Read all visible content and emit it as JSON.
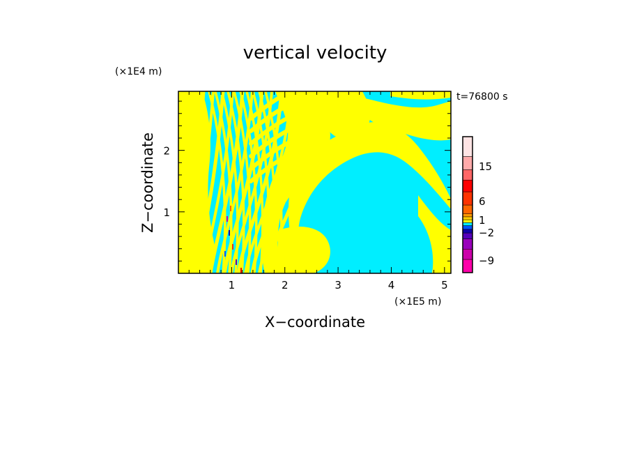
{
  "chart_data": {
    "type": "heatmap",
    "title": "vertical velocity",
    "time_label": "t=76800 s",
    "xlabel": "X−coordinate",
    "ylabel": "Z−coordinate",
    "x_unit": "(×1E5 m)",
    "y_unit": "(×1E4 m)",
    "xlim": [
      0,
      5.12
    ],
    "ylim": [
      0,
      2.96
    ],
    "x_ticks": [
      1,
      2,
      3,
      4,
      5
    ],
    "y_ticks": [
      1,
      2
    ],
    "x_tick_labels": [
      "1",
      "2",
      "3",
      "4",
      "5"
    ],
    "y_tick_labels": [
      "1",
      "2"
    ],
    "dominant_colors": {
      "positive_small": "#ffff00",
      "negative_small": "#00eeff"
    },
    "colorbar": {
      "tick_labels": [
        "15",
        "6",
        "1",
        "−2",
        "−9"
      ],
      "levels": [
        {
          "color": "#ff00aa"
        },
        {
          "color": "#cc00aa"
        },
        {
          "color": "#9900bb"
        },
        {
          "color": "#5500bb"
        },
        {
          "color": "#1100aa"
        },
        {
          "color": "#0055ff"
        },
        {
          "color": "#00eeff"
        },
        {
          "color": "#ffff00"
        },
        {
          "color": "#ffcc00"
        },
        {
          "color": "#ff9900"
        },
        {
          "color": "#ff6600"
        },
        {
          "color": "#ff3300"
        },
        {
          "color": "#ff0000"
        },
        {
          "color": "#ff6666"
        },
        {
          "color": "#ffaaaa"
        },
        {
          "color": "#ffe4e4"
        }
      ]
    }
  }
}
